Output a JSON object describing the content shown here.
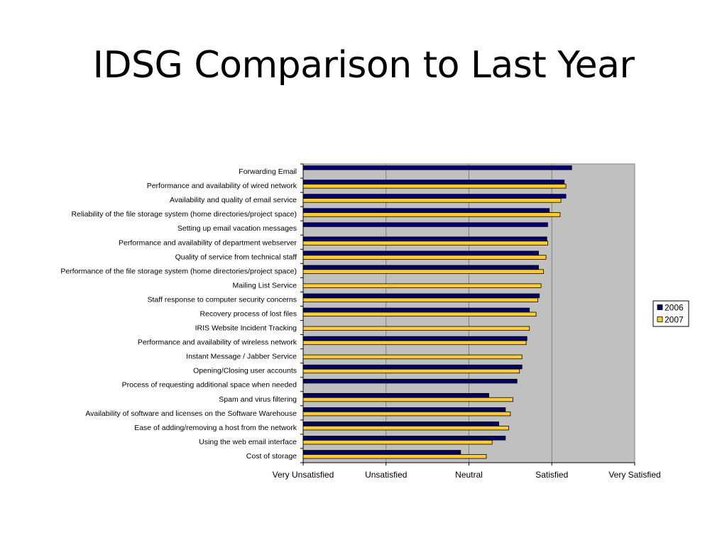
{
  "slide": {
    "title": "IDSG Comparison to Last Year"
  },
  "chart_data": {
    "type": "bar",
    "orientation": "horizontal",
    "title": "",
    "xlabel": "",
    "ylabel": "",
    "xlim": [
      1,
      5
    ],
    "x_tick_labels": [
      "Very Unsatisfied",
      "Unsatisfied",
      "Neutral",
      "Satisfied",
      "Very Satisfied"
    ],
    "grid": true,
    "legend_position": "right",
    "categories": [
      "Forwarding Email",
      "Performance and availability of wired network",
      "Availability and quality of email service",
      "Reliability of the file storage system (home directories/project space)",
      "Setting up email vacation messages",
      "Performance and availability of department webserver",
      "Quality of service from technical staff",
      "Performance of the file storage system (home directories/project space)",
      "Mailing List Service",
      "Staff response to computer security concerns",
      "Recovery process of lost files",
      "IRIS Website Incident Tracking",
      "Performance and availability of wireless network",
      "Instant Message / Jabber Service",
      "Opening/Closing user accounts",
      "Process of requesting additional space when needed",
      "Spam and virus filtering",
      "Availability of software and licenses on the Software Warehouse",
      "Ease of adding/removing a host from the network",
      "Using the web email interface",
      "Cost of storage"
    ],
    "series": [
      {
        "name": "2006",
        "color": "#000066",
        "values": [
          4.24,
          4.15,
          4.17,
          3.97,
          3.95,
          3.94,
          3.84,
          3.84,
          null,
          3.85,
          3.73,
          null,
          3.7,
          null,
          3.64,
          3.58,
          3.24,
          3.44,
          3.36,
          3.44,
          2.9
        ]
      },
      {
        "name": "2007",
        "color": "#FFCC33",
        "values": [
          null,
          4.17,
          4.11,
          4.1,
          null,
          3.95,
          3.93,
          3.9,
          3.87,
          3.83,
          3.81,
          3.73,
          3.69,
          3.64,
          3.61,
          null,
          3.53,
          3.5,
          3.48,
          3.28,
          3.21
        ]
      }
    ]
  }
}
